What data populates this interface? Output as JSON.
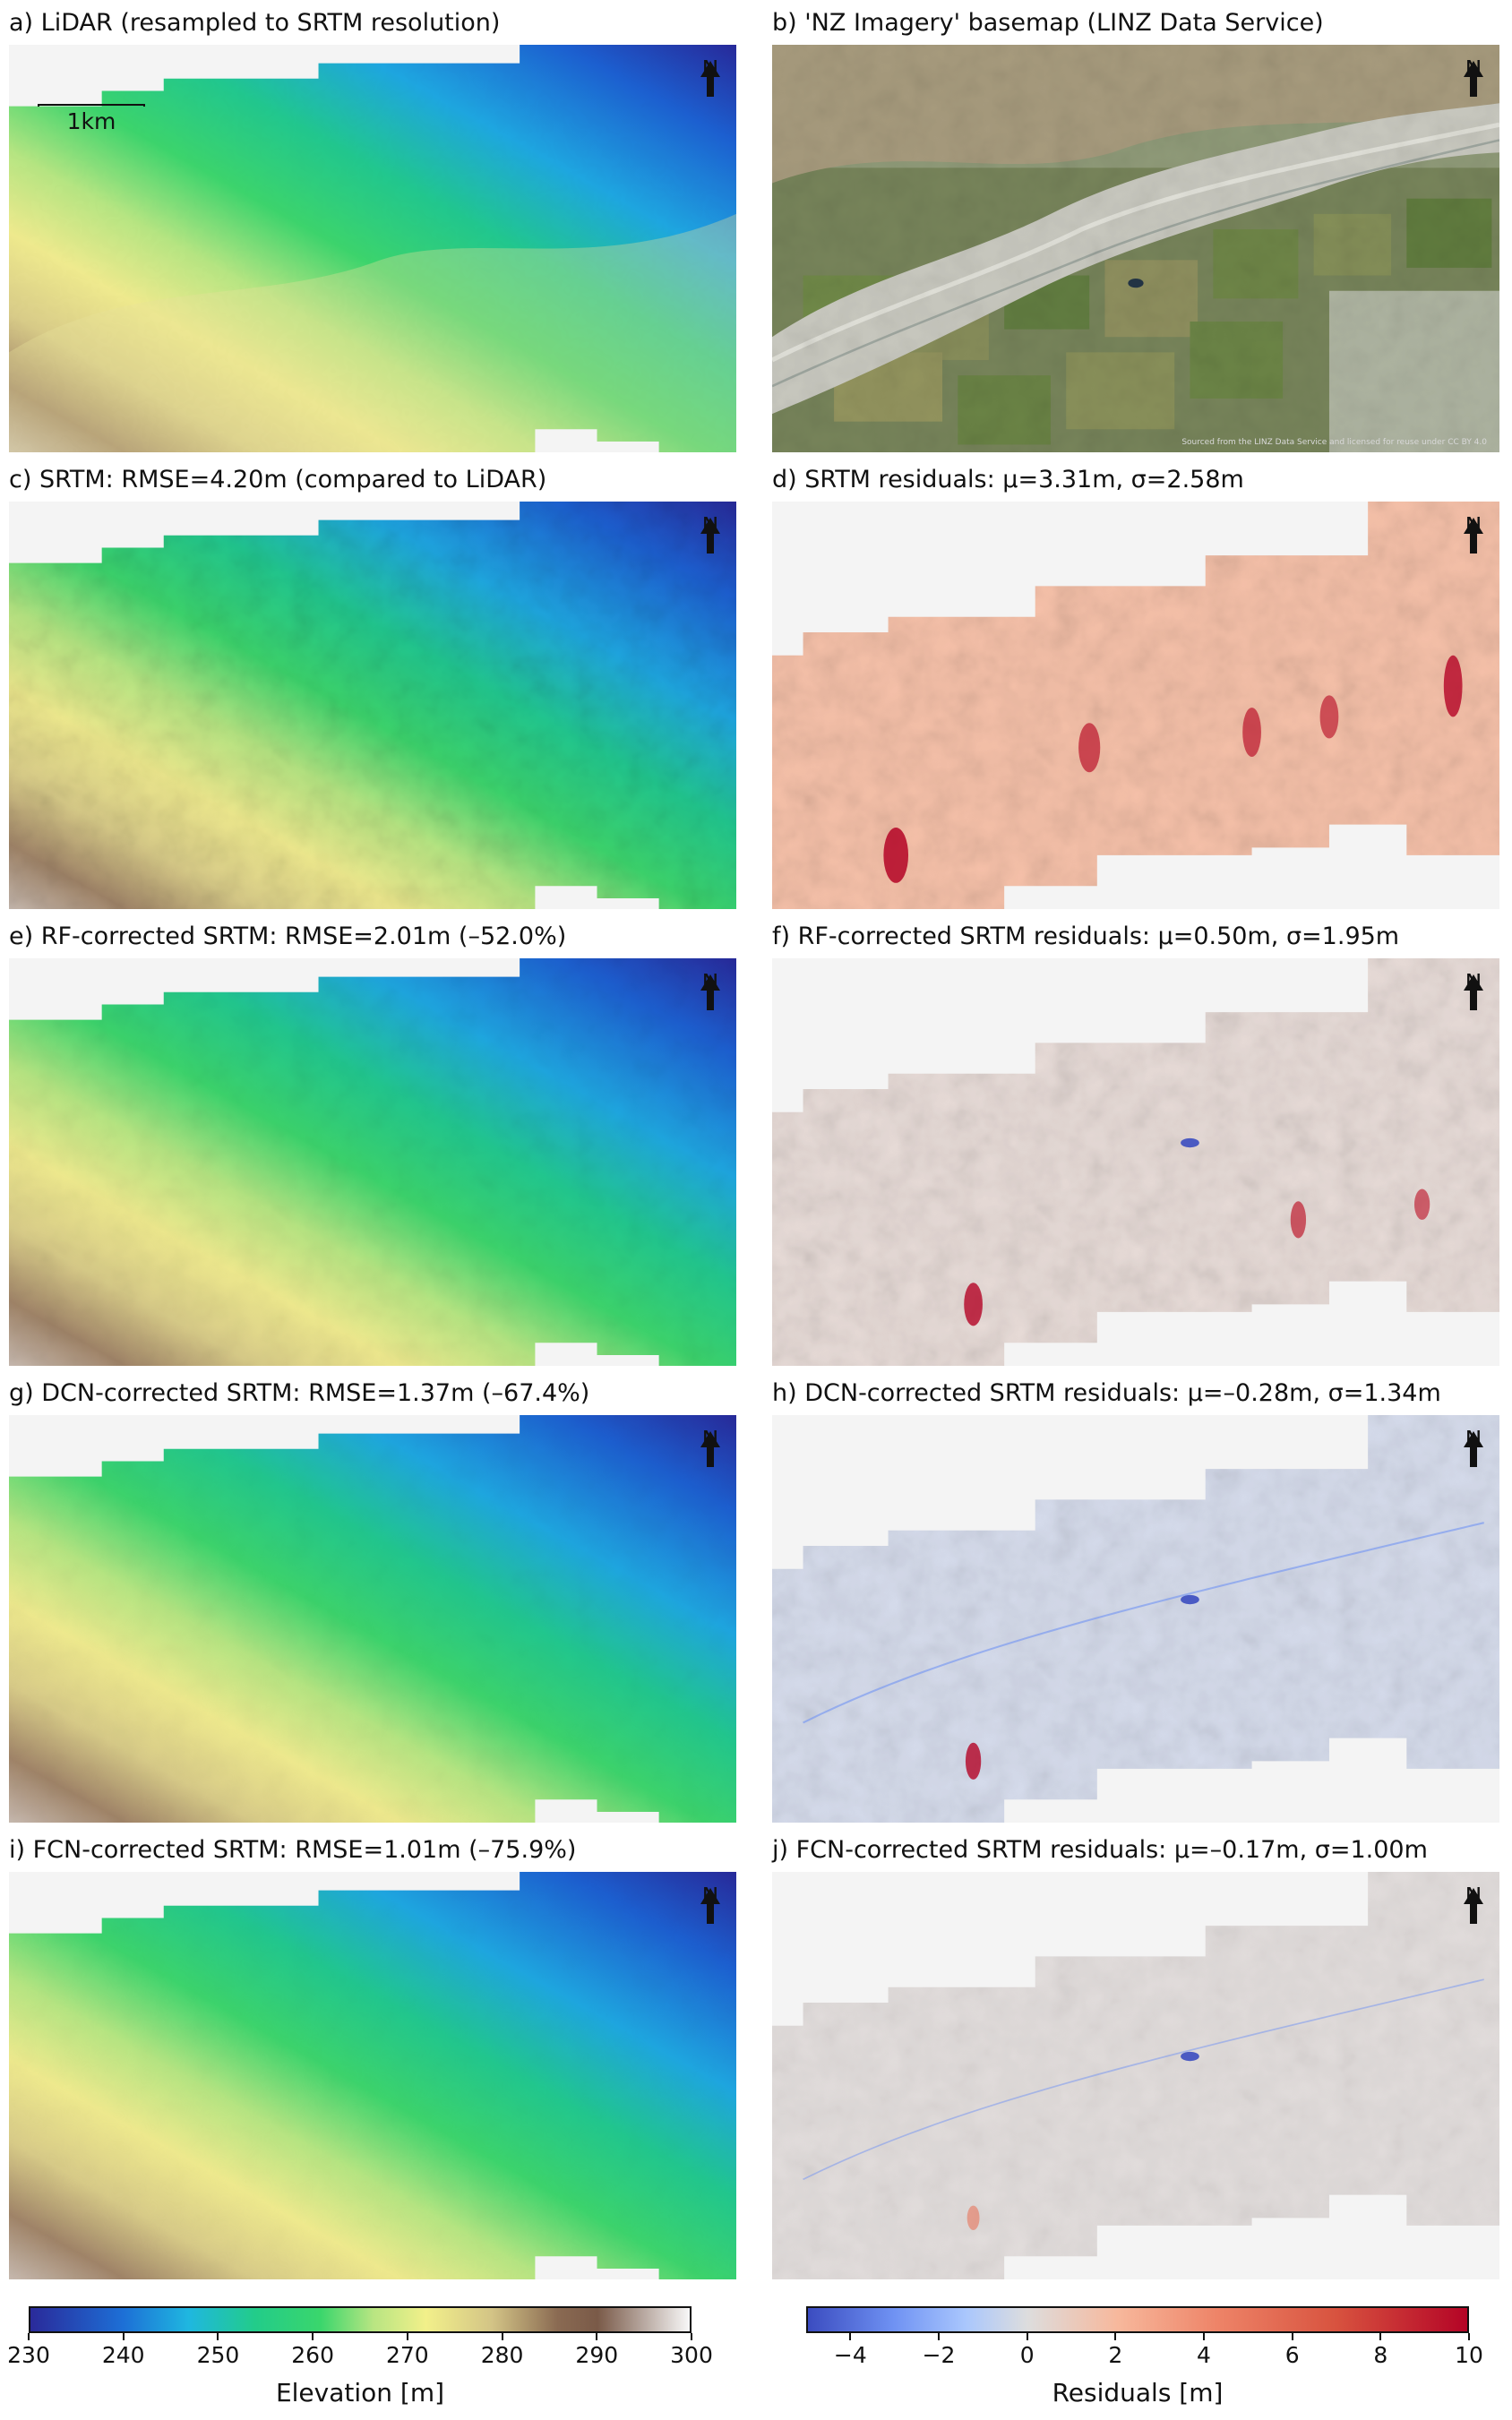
{
  "panels": [
    {
      "id": "a",
      "title": "a) LiDAR (resampled to SRTM resolution)",
      "kind": "elev",
      "texture": 0.05
    },
    {
      "id": "b",
      "title": "b) 'NZ Imagery' basemap (LINZ Data Service)",
      "kind": "imagery"
    },
    {
      "id": "c",
      "title": "c) SRTM: RMSE=4.20m (compared to LiDAR)",
      "kind": "elev",
      "texture": 0.8
    },
    {
      "id": "d",
      "title": "d) SRTM residuals: μ=3.31m, σ=2.58m",
      "kind": "resid",
      "mean": 3.31,
      "sigma": 2.58
    },
    {
      "id": "e",
      "title": "e) RF-corrected SRTM: RMSE=2.01m (–52.0%)",
      "kind": "elev",
      "texture": 0.45
    },
    {
      "id": "f",
      "title": "f) RF-corrected SRTM residuals: μ=0.50m, σ=1.95m",
      "kind": "resid",
      "mean": 0.5,
      "sigma": 1.95
    },
    {
      "id": "g",
      "title": "g) DCN-corrected SRTM: RMSE=1.37m (–67.4%)",
      "kind": "elev",
      "texture": 0.25
    },
    {
      "id": "h",
      "title": "h) DCN-corrected SRTM residuals: μ=–0.28m, σ=1.34m",
      "kind": "resid",
      "mean": -0.28,
      "sigma": 1.34
    },
    {
      "id": "i",
      "title": "i) FCN-corrected SRTM: RMSE=1.01m (–75.9%)",
      "kind": "elev",
      "texture": 0.15
    },
    {
      "id": "j",
      "title": "j) FCN-corrected SRTM residuals: μ=–0.17m, σ=1.00m",
      "kind": "resid",
      "mean": -0.17,
      "sigma": 1.0
    }
  ],
  "north_label": "N",
  "scalebar_label": "1km",
  "colorbars": {
    "elevation": {
      "label": "Elevation [m]",
      "ticks": [
        "230",
        "240",
        "250",
        "260",
        "270",
        "280",
        "290",
        "300"
      ],
      "range": [
        230,
        300
      ],
      "colors": [
        "#2a2a9a",
        "#1d6fd6",
        "#1fb7e0",
        "#22cc8a",
        "#36d66a",
        "#8fe07a",
        "#f2f08a",
        "#dccf86",
        "#a88a6a",
        "#7a5a48",
        "#b8a8a0",
        "#f4f4f4"
      ]
    },
    "residuals": {
      "label": "Residuals [m]",
      "ticks": [
        "−4",
        "−2",
        "0",
        "2",
        "4",
        "6",
        "8",
        "10"
      ],
      "tick_values": [
        -4,
        -2,
        0,
        2,
        4,
        6,
        8,
        10
      ],
      "range": [
        -5,
        10
      ],
      "colors": [
        "#3b4cc0",
        "#6f92f3",
        "#aac7fd",
        "#dddddd",
        "#f7b89c",
        "#e7745b",
        "#d1493f",
        "#b40426"
      ]
    }
  },
  "basemap_attribution": "Sourced from the LINZ Data Service and licensed for reuse under CC BY 4.0"
}
